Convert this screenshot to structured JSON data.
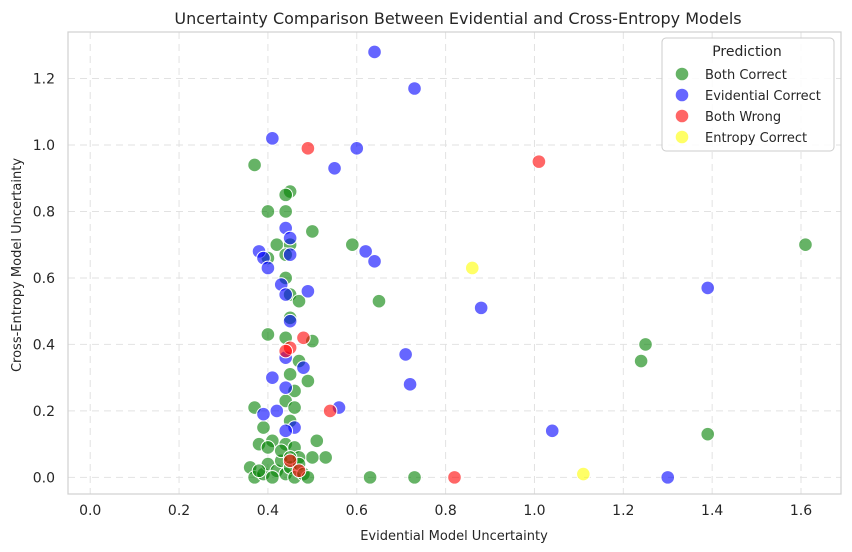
{
  "chart_data": {
    "type": "scatter",
    "title": "Uncertainty Comparison Between Evidential and Cross-Entropy Models",
    "xlabel": "Evidential Model Uncertainty",
    "ylabel": "Cross-Entropy Model Uncertainty",
    "xlim": [
      -0.05,
      1.69
    ],
    "ylim": [
      -0.05,
      1.34
    ],
    "xticks": [
      "0.0",
      "0.2",
      "0.4",
      "0.6",
      "0.8",
      "1.0",
      "1.2",
      "1.4",
      "1.6"
    ],
    "yticks": [
      "0.0",
      "0.2",
      "0.4",
      "0.6",
      "0.8",
      "1.0",
      "1.2"
    ],
    "grid": true,
    "legend": {
      "title": "Prediction",
      "position": "top-right"
    },
    "series": [
      {
        "name": "Both Correct",
        "color": "#008000",
        "points": [
          [
            0.37,
            0.94
          ],
          [
            0.4,
            0.8
          ],
          [
            0.44,
            0.8
          ],
          [
            0.45,
            0.86
          ],
          [
            0.44,
            0.85
          ],
          [
            0.5,
            0.74
          ],
          [
            0.42,
            0.7
          ],
          [
            0.45,
            0.7
          ],
          [
            0.44,
            0.67
          ],
          [
            0.4,
            0.66
          ],
          [
            0.59,
            0.7
          ],
          [
            0.44,
            0.6
          ],
          [
            0.45,
            0.55
          ],
          [
            0.47,
            0.53
          ],
          [
            0.65,
            0.53
          ],
          [
            0.4,
            0.43
          ],
          [
            0.44,
            0.42
          ],
          [
            0.5,
            0.41
          ],
          [
            0.45,
            0.48
          ],
          [
            0.47,
            0.35
          ],
          [
            0.45,
            0.31
          ],
          [
            0.49,
            0.29
          ],
          [
            0.46,
            0.26
          ],
          [
            0.37,
            0.21
          ],
          [
            0.44,
            0.23
          ],
          [
            0.46,
            0.21
          ],
          [
            0.45,
            0.17
          ],
          [
            0.51,
            0.11
          ],
          [
            0.39,
            0.15
          ],
          [
            0.41,
            0.11
          ],
          [
            0.38,
            0.1
          ],
          [
            0.4,
            0.09
          ],
          [
            0.44,
            0.1
          ],
          [
            0.46,
            0.09
          ],
          [
            0.53,
            0.06
          ],
          [
            0.5,
            0.06
          ],
          [
            0.47,
            0.06
          ],
          [
            0.36,
            0.03
          ],
          [
            0.37,
            0.0
          ],
          [
            0.39,
            0.01
          ],
          [
            0.4,
            0.04
          ],
          [
            0.42,
            0.02
          ],
          [
            0.43,
            0.05
          ],
          [
            0.44,
            0.01
          ],
          [
            0.45,
            0.03
          ],
          [
            0.46,
            0.0
          ],
          [
            0.47,
            0.04
          ],
          [
            0.48,
            0.01
          ],
          [
            0.49,
            0.0
          ],
          [
            0.38,
            0.02
          ],
          [
            0.41,
            0.0
          ],
          [
            0.43,
            0.08
          ],
          [
            0.45,
            0.06
          ],
          [
            0.63,
            0.0
          ],
          [
            0.73,
            0.0
          ],
          [
            1.24,
            0.35
          ],
          [
            1.25,
            0.4
          ],
          [
            1.39,
            0.13
          ],
          [
            1.61,
            0.7
          ]
        ]
      },
      {
        "name": "Evidential Correct",
        "color": "#0000FF",
        "points": [
          [
            0.64,
            1.28
          ],
          [
            0.73,
            1.17
          ],
          [
            0.41,
            1.02
          ],
          [
            0.6,
            0.99
          ],
          [
            0.55,
            0.93
          ],
          [
            0.44,
            0.75
          ],
          [
            0.45,
            0.72
          ],
          [
            0.45,
            0.67
          ],
          [
            0.38,
            0.68
          ],
          [
            0.39,
            0.66
          ],
          [
            0.4,
            0.63
          ],
          [
            0.62,
            0.68
          ],
          [
            0.64,
            0.65
          ],
          [
            0.43,
            0.58
          ],
          [
            0.44,
            0.55
          ],
          [
            0.49,
            0.56
          ],
          [
            0.45,
            0.47
          ],
          [
            0.44,
            0.36
          ],
          [
            0.48,
            0.33
          ],
          [
            0.41,
            0.3
          ],
          [
            0.44,
            0.27
          ],
          [
            0.42,
            0.2
          ],
          [
            0.39,
            0.19
          ],
          [
            0.46,
            0.15
          ],
          [
            0.44,
            0.14
          ],
          [
            0.56,
            0.21
          ],
          [
            0.71,
            0.37
          ],
          [
            0.72,
            0.28
          ],
          [
            0.88,
            0.51
          ],
          [
            1.04,
            0.14
          ],
          [
            1.3,
            0.0
          ],
          [
            1.39,
            0.57
          ]
        ]
      },
      {
        "name": "Both Wrong",
        "color": "#FF0000",
        "points": [
          [
            0.49,
            0.99
          ],
          [
            1.01,
            0.95
          ],
          [
            0.48,
            0.42
          ],
          [
            0.45,
            0.39
          ],
          [
            0.44,
            0.38
          ],
          [
            0.54,
            0.2
          ],
          [
            0.45,
            0.05
          ],
          [
            0.47,
            0.02
          ],
          [
            0.82,
            0.0
          ]
        ]
      },
      {
        "name": "Entropy Correct",
        "color": "#FFFF00",
        "points": [
          [
            0.86,
            0.63
          ],
          [
            1.11,
            0.01
          ]
        ]
      }
    ]
  }
}
